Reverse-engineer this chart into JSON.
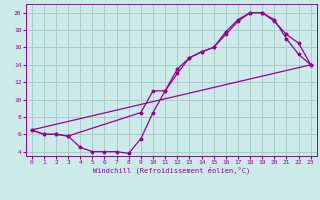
{
  "background_color": "#cceae8",
  "grid_color": "#aacccc",
  "line_color": "#990099",
  "xlim": [
    -0.5,
    23.5
  ],
  "ylim": [
    3.5,
    21
  ],
  "xticks": [
    0,
    1,
    2,
    3,
    4,
    5,
    6,
    7,
    8,
    9,
    10,
    11,
    12,
    13,
    14,
    15,
    16,
    17,
    18,
    19,
    20,
    21,
    22,
    23
  ],
  "yticks": [
    4,
    6,
    8,
    10,
    12,
    14,
    16,
    18,
    20
  ],
  "xlabel": "Windchill (Refroidissement éolien,°C)",
  "line1_x": [
    0,
    1,
    2,
    3,
    4,
    5,
    6,
    7,
    8,
    9,
    10,
    11,
    12,
    13,
    14,
    15,
    16,
    17,
    18,
    19,
    20,
    21,
    22,
    23
  ],
  "line1_y": [
    6.5,
    6.0,
    6.0,
    5.8,
    4.5,
    4.0,
    4.0,
    4.0,
    3.8,
    5.5,
    8.5,
    11.0,
    13.0,
    14.8,
    15.5,
    16.0,
    17.8,
    19.2,
    20.0,
    20.0,
    19.2,
    17.0,
    15.2,
    14.0
  ],
  "line2_x": [
    0,
    1,
    2,
    3,
    9,
    10,
    11,
    12,
    13,
    14,
    15,
    16,
    17,
    18,
    19,
    20,
    21,
    22,
    23
  ],
  "line2_y": [
    6.5,
    6.0,
    6.0,
    5.8,
    8.5,
    11.0,
    11.0,
    13.5,
    14.8,
    15.5,
    16.0,
    17.5,
    19.0,
    20.0,
    20.0,
    19.0,
    17.5,
    16.5,
    14.0
  ],
  "line3_x": [
    0,
    23
  ],
  "line3_y": [
    6.5,
    14.0
  ]
}
